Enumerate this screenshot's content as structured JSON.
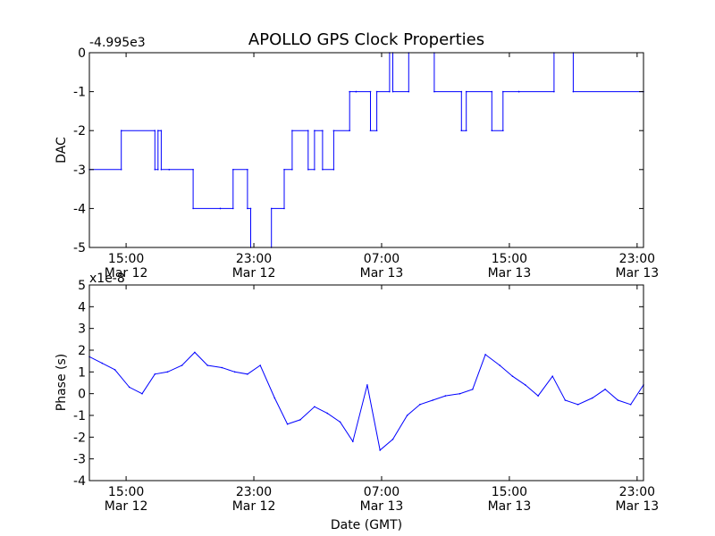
{
  "figure_title": "APOLLO GPS Clock Properties",
  "colors": {
    "series": "#0000ff",
    "axes": "#000000",
    "background": "#ffffff"
  },
  "chart_data": [
    {
      "type": "line",
      "ylabel": "DAC",
      "xlabel": "",
      "offset_label": "-4.995e3",
      "x_range_hours": [
        12.7,
        47.4
      ],
      "ylim": [
        -5,
        0
      ],
      "yticks": [
        0,
        -1,
        -2,
        -3,
        -4,
        -5
      ],
      "ytick_labels": [
        "0",
        "-1",
        "-2",
        "-3",
        "-4",
        "-5"
      ],
      "xticks": [
        {
          "hour": 15,
          "time": "15:00",
          "date": "Mar 12"
        },
        {
          "hour": 23,
          "time": "23:00",
          "date": "Mar 12"
        },
        {
          "hour": 31,
          "time": "07:00",
          "date": "Mar 13"
        },
        {
          "hour": 39,
          "time": "15:00",
          "date": "Mar 13"
        },
        {
          "hour": 47,
          "time": "23:00",
          "date": "Mar 13"
        }
      ],
      "grid": false,
      "step_x_hours": [
        12.7,
        14.7,
        14.7,
        16.8,
        16.8,
        17.0,
        17.0,
        17.2,
        17.2,
        17.7,
        17.7,
        19.2,
        19.2,
        20.9,
        20.9,
        21.7,
        21.7,
        22.6,
        22.6,
        22.8,
        22.8,
        24.1,
        24.1,
        24.9,
        24.9,
        25.4,
        25.4,
        26.4,
        26.4,
        26.8,
        26.8,
        27.3,
        27.3,
        28.0,
        28.0,
        29.0,
        29.0,
        29.4,
        29.4,
        30.3,
        30.3,
        30.7,
        30.7,
        31.5,
        31.5,
        31.7,
        31.7,
        32.7,
        32.7,
        34.3,
        34.3,
        36.0,
        36.0,
        36.3,
        36.3,
        37.9,
        37.9,
        38.6,
        38.6,
        39.6,
        39.6,
        41.8,
        41.8,
        43.0,
        43.0,
        47.4
      ],
      "step_y": [
        -3,
        -3,
        -2,
        -2,
        -3,
        -3,
        -2,
        -2,
        -3,
        -3,
        -3,
        -3,
        -4,
        -4,
        -4,
        -4,
        -3,
        -3,
        -4,
        -4,
        -5,
        -5,
        -4,
        -4,
        -3,
        -3,
        -2,
        -2,
        -3,
        -3,
        -2,
        -2,
        -3,
        -3,
        -2,
        -2,
        -1,
        -1,
        -1,
        -1,
        -2,
        -2,
        -1,
        -1,
        0,
        0,
        -1,
        -1,
        0,
        0,
        -1,
        -1,
        -2,
        -2,
        -1,
        -1,
        -2,
        -2,
        -1,
        -1,
        -1,
        -1,
        0,
        0,
        -1,
        -1
      ]
    },
    {
      "type": "line",
      "ylabel": "Phase (s)",
      "xlabel": "Date (GMT)",
      "offset_label": "x1e-8",
      "x_range_hours": [
        12.7,
        47.4
      ],
      "ylim": [
        -4,
        5
      ],
      "yticks": [
        5,
        4,
        3,
        2,
        1,
        0,
        -1,
        -2,
        -3,
        -4
      ],
      "ytick_labels": [
        "5",
        "4",
        "3",
        "2",
        "1",
        "0",
        "-1",
        "-2",
        "-3",
        "-4"
      ],
      "xticks": [
        {
          "hour": 15,
          "time": "15:00",
          "date": "Mar 12"
        },
        {
          "hour": 23,
          "time": "23:00",
          "date": "Mar 12"
        },
        {
          "hour": 31,
          "time": "07:00",
          "date": "Mar 13"
        },
        {
          "hour": 39,
          "time": "15:00",
          "date": "Mar 13"
        },
        {
          "hour": 47,
          "time": "23:00",
          "date": "Mar 13"
        }
      ],
      "grid": false,
      "x_hours": [
        12.7,
        13.5,
        14.3,
        15.2,
        16.0,
        16.8,
        17.6,
        18.5,
        19.3,
        20.1,
        21.0,
        21.8,
        22.6,
        23.4,
        24.3,
        25.1,
        25.9,
        26.8,
        27.6,
        28.4,
        29.2,
        30.1,
        30.9,
        31.7,
        32.6,
        33.4,
        34.2,
        35.0,
        35.9,
        36.7,
        37.5,
        38.4,
        39.2,
        40.0,
        40.8,
        41.7,
        42.5,
        43.3,
        44.2,
        45.0,
        45.8,
        46.6,
        47.4
      ],
      "values": [
        1.7,
        1.4,
        1.1,
        0.3,
        0.0,
        0.9,
        1.0,
        1.3,
        1.9,
        1.3,
        1.2,
        1.0,
        0.9,
        1.3,
        -0.2,
        -1.4,
        -1.2,
        -0.6,
        -0.9,
        -1.3,
        -2.2,
        0.4,
        -2.6,
        -2.1,
        -1.0,
        -0.5,
        -0.3,
        -0.1,
        0.0,
        0.2,
        1.8,
        1.3,
        0.8,
        0.4,
        -0.1,
        0.8,
        -0.3,
        -0.5,
        -0.2,
        0.2,
        -0.3,
        -0.5,
        0.4
      ]
    }
  ]
}
